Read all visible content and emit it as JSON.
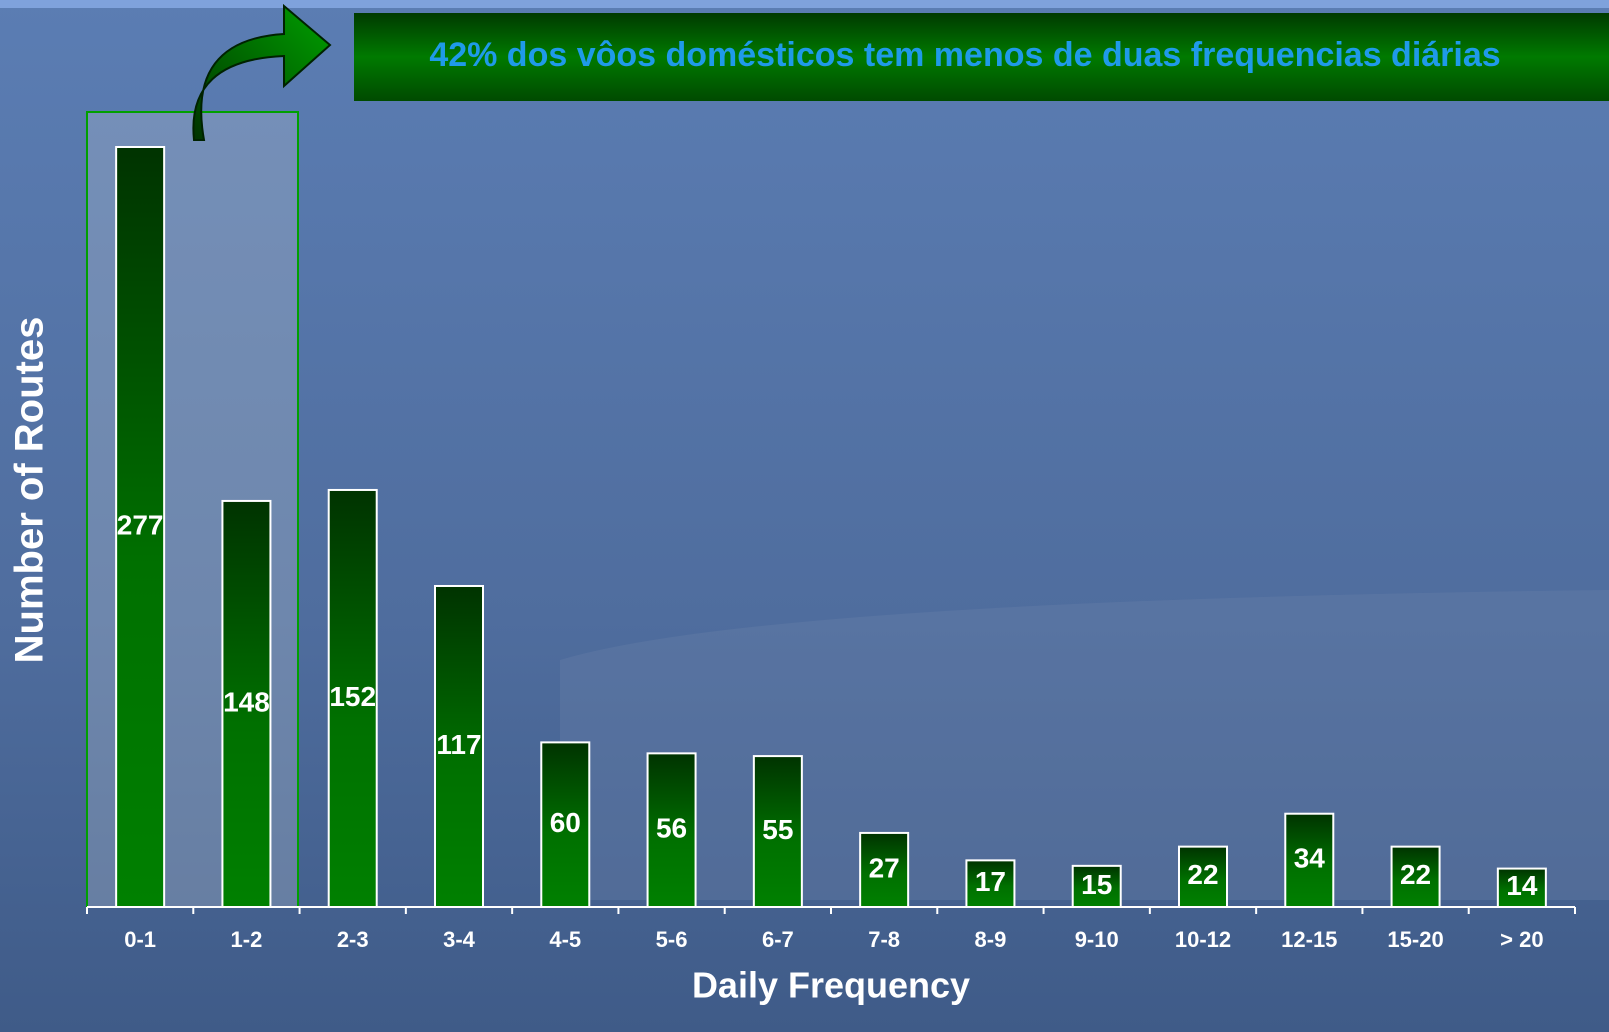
{
  "chart_data": {
    "type": "bar",
    "annotation": "42% dos vôos domésticos tem menos de duas frequencias diárias",
    "x_label": "Daily Frequency",
    "y_label": "Number of Routes",
    "categories": [
      "0-1",
      "1-2",
      "2-3",
      "3-4",
      "4-5",
      "5-6",
      "6-7",
      "7-8",
      "8-9",
      "9-10",
      "10-12",
      "12-15",
      "15-20",
      "> 20"
    ],
    "values": [
      277,
      148,
      152,
      117,
      60,
      56,
      55,
      27,
      17,
      15,
      22,
      34,
      22,
      14
    ],
    "color": "#008000"
  }
}
